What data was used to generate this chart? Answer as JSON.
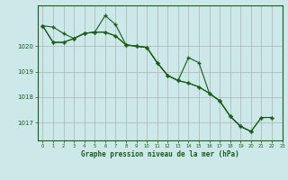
{
  "title": "Graphe pression niveau de la mer (hPa)",
  "bg_color": "#cce8e8",
  "plot_bg_color": "#cce8e8",
  "line_color": "#1a5c1a",
  "grid_color": "#b0b0b0",
  "text_color": "#1a5c1a",
  "xlim": [
    -0.5,
    23
  ],
  "ylim": [
    1016.3,
    1021.6
  ],
  "yticks": [
    1017,
    1018,
    1019,
    1020
  ],
  "xticks": [
    0,
    1,
    2,
    3,
    4,
    5,
    6,
    7,
    8,
    9,
    10,
    11,
    12,
    13,
    14,
    15,
    16,
    17,
    18,
    19,
    20,
    21,
    22,
    23
  ],
  "series1_x": [
    0,
    1,
    2,
    3,
    4,
    5,
    6,
    7,
    8,
    9,
    10,
    11,
    12,
    13,
    14,
    15,
    16,
    17,
    18,
    19,
    20,
    21,
    22
  ],
  "series1_y": [
    1020.8,
    1020.75,
    1020.5,
    1020.3,
    1020.5,
    1020.55,
    1021.2,
    1020.85,
    1020.05,
    1020.0,
    1019.95,
    1019.35,
    1018.85,
    1018.65,
    1018.55,
    1018.4,
    1018.15,
    1017.85,
    1017.25,
    1016.85,
    1016.65,
    1017.2,
    1017.2
  ],
  "series2_x": [
    0,
    1,
    2,
    3,
    4,
    5,
    6,
    7,
    8,
    9,
    10,
    11,
    12,
    13,
    14,
    15,
    16,
    17,
    18,
    19,
    20
  ],
  "series2_y": [
    1020.8,
    1020.15,
    1020.15,
    1020.3,
    1020.5,
    1020.55,
    1020.55,
    1020.4,
    1020.05,
    1020.0,
    1019.95,
    1019.35,
    1018.85,
    1018.65,
    1019.55,
    1019.35,
    1018.15,
    1017.85,
    1017.25,
    1016.85,
    1016.65
  ],
  "series3_x": [
    0,
    1,
    2,
    3,
    4,
    5,
    6,
    7,
    8,
    9,
    10,
    11,
    12,
    13,
    14,
    15,
    16,
    17,
    18,
    19,
    20,
    21,
    22
  ],
  "series3_y": [
    1020.8,
    1020.15,
    1020.15,
    1020.3,
    1020.5,
    1020.55,
    1020.55,
    1020.4,
    1020.05,
    1020.0,
    1019.95,
    1019.35,
    1018.85,
    1018.65,
    1018.55,
    1018.4,
    1018.15,
    1017.85,
    1017.25,
    1016.85,
    1016.65,
    1017.2,
    1017.2
  ]
}
